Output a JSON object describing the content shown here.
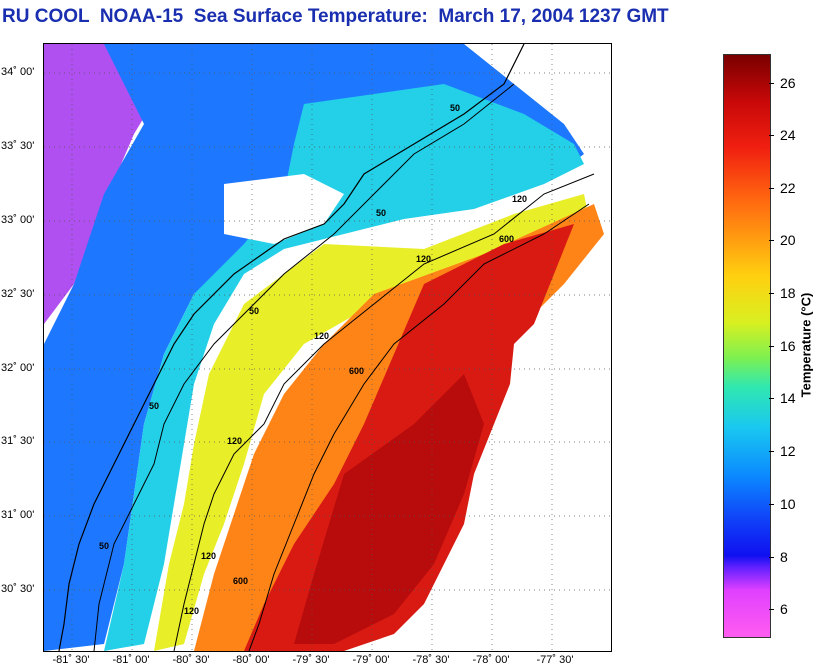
{
  "title": "RU COOL  NOAA-15  Sea Surface Temperature:  March 17, 2004 1237 GMT",
  "map": {
    "lat_ticks": [
      "34˚ 00'",
      "33˚ 30'",
      "33˚ 00'",
      "32˚ 30'",
      "32˚ 00'",
      "31˚ 30'",
      "31˚ 00'",
      "30˚ 30'"
    ],
    "lon_ticks": [
      "-81˚ 30'",
      "-81˚ 00'",
      "-80˚ 30'",
      "-80˚ 00'",
      "-79˚ 30'",
      "-79˚ 00'",
      "-78˚ 30'",
      "-78˚ 00'",
      "-77˚ 30'"
    ],
    "isobaths": [
      "50",
      "120",
      "600"
    ],
    "colors": {
      "land": "#ffffff",
      "cold": "#c040ff",
      "cool": "#1870ff",
      "mild": "#20d8e0",
      "shelf": "#e8f020",
      "warm": "#ff7010",
      "stream": "#c81010"
    }
  },
  "colorbar": {
    "label": "Temperature (°C)",
    "ticks": [
      "26",
      "24",
      "22",
      "20",
      "18",
      "16",
      "14",
      "12",
      "10",
      "8",
      "6"
    ]
  }
}
